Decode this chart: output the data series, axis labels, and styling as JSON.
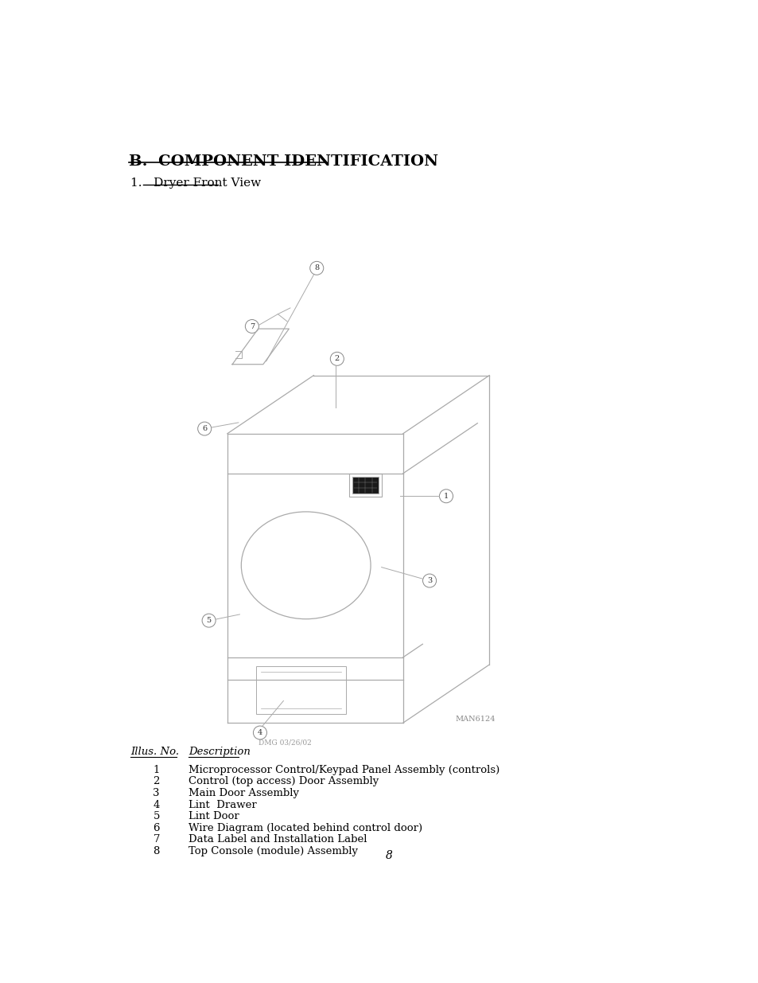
{
  "title": "B.  COMPONENT IDENTIFICATION",
  "subtitle": "1.   Dryer Front View",
  "bg_color": "#ffffff",
  "text_color": "#000000",
  "line_color": "#aaaaaa",
  "table_header_num": "Illus. No.",
  "table_header_desc": "Description",
  "components": [
    {
      "num": "1",
      "desc": "Microprocessor Control/Keypad Panel Assembly (controls)"
    },
    {
      "num": "2",
      "desc": "Control (top access) Door Assembly"
    },
    {
      "num": "3",
      "desc": "Main Door Assembly"
    },
    {
      "num": "4",
      "desc": "Lint  Drawer"
    },
    {
      "num": "5",
      "desc": "Lint Door"
    },
    {
      "num": "6",
      "desc": "Wire Diagram (located behind control door)"
    },
    {
      "num": "7",
      "desc": "Data Label and Installation Label"
    },
    {
      "num": "8",
      "desc": "Top Console (module) Assembly"
    }
  ],
  "page_number": "8",
  "man_number": "MAN6124",
  "dmg_date": "DMG 03/26/02"
}
